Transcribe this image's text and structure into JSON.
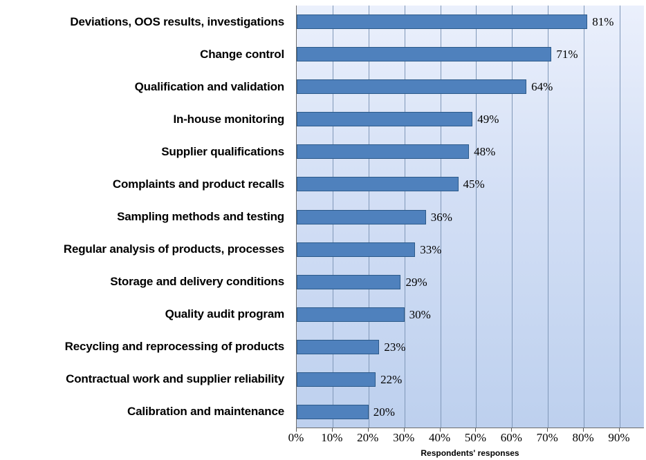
{
  "chart_data": {
    "type": "bar",
    "orientation": "horizontal",
    "title": "",
    "xlabel": "Respondents' responses",
    "ylabel": "",
    "xlim": [
      0,
      90
    ],
    "grid": "vertical",
    "legend": "none",
    "categories": [
      "Deviations, OOS results, investigations",
      "Change control",
      "Qualification and validation",
      "In-house monitoring",
      "Supplier qualifications",
      "Complaints and product recalls",
      "Sampling methods and testing",
      "Regular analysis of products, processes",
      "Storage and delivery conditions",
      "Quality audit program",
      "Recycling and reprocessing of products",
      "Contractual work and supplier reliability",
      "Calibration and maintenance"
    ],
    "values": [
      81,
      71,
      64,
      49,
      48,
      45,
      36,
      33,
      29,
      30,
      23,
      22,
      20
    ],
    "value_labels": [
      "81%",
      "71%",
      "64%",
      "49%",
      "48%",
      "45%",
      "36%",
      "33%",
      "29%",
      "30%",
      "23%",
      "22%",
      "20%"
    ],
    "xticks": [
      "0%",
      "10%",
      "20%",
      "30%",
      "40%",
      "50%",
      "60%",
      "70%",
      "80%",
      "90%"
    ],
    "xtick_values": [
      0,
      10,
      20,
      30,
      40,
      50,
      60,
      70,
      80,
      90
    ],
    "colors": {
      "bar_fill": "#4f81bd",
      "bar_border": "#2c5a8a",
      "plot_bg_top": "#ebf0fc",
      "plot_bg_bottom": "#bdd0ee",
      "gridline": "#7f97b8",
      "axis_line": "#6b6b6b",
      "text": "#000000"
    }
  }
}
